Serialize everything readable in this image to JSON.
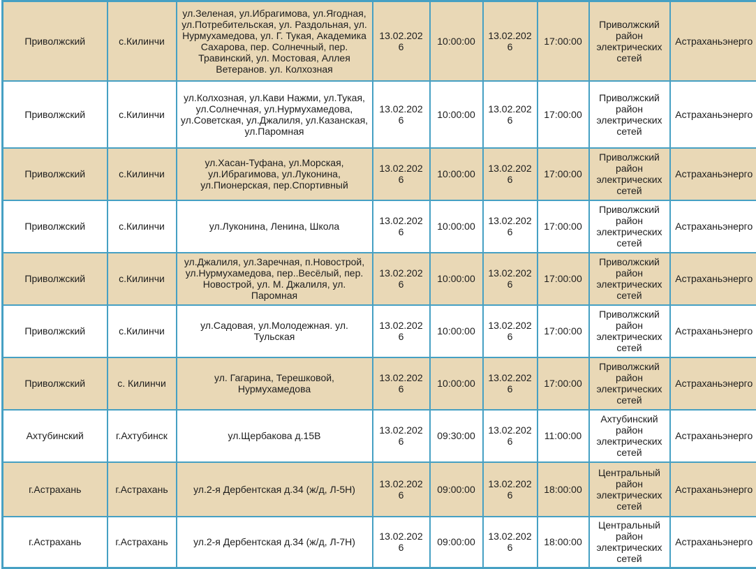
{
  "colors": {
    "shaded_row_bg": "#e9d8b6",
    "plain_row_bg": "#ffffff",
    "grid_border": "#46a0c3",
    "text": "#1d1d1d"
  },
  "table": {
    "columns": [
      "district",
      "settlement",
      "streets",
      "start_date",
      "start_time",
      "end_date",
      "end_time",
      "network_area",
      "company"
    ],
    "rows": [
      {
        "district": "Приволжский",
        "settlement": "с.Килинчи",
        "streets": "ул.Зеленая, ул.Ибрагимова, ул.Ягодная, ул.Потребительская, ул. Раздольная, ул. Нурмухамедова, ул. Г. Тукая, Академика Сахарова, пер. Солнечный, пер. Травинский, ул. Мостовая, Аллея Ветеранов. ул. Колхозная",
        "start_date": "13.02.2026",
        "start_time": "10:00:00",
        "end_date": "13.02.2026",
        "end_time": "17:00:00",
        "network_area": "Приволжский район электрических сетей",
        "company": "Астраханьэнерго"
      },
      {
        "district": "Приволжский",
        "settlement": "с.Килинчи",
        "streets": "ул.Колхозная, ул.Кави Нажми, ул.Тукая, ул.Солнечная, ул.Нурмухамедова, ул.Советская, ул.Джалиля, ул.Казанская, ул.Паромная",
        "start_date": "13.02.2026",
        "start_time": "10:00:00",
        "end_date": "13.02.2026",
        "end_time": "17:00:00",
        "network_area": "Приволжский район электрических сетей",
        "company": "Астраханьэнерго"
      },
      {
        "district": "Приволжский",
        "settlement": "с.Килинчи",
        "streets": "ул.Хасан-Туфана, ул.Морская, ул.Ибрагимова, ул.Луконина, ул.Пионерская, пер.Спортивный",
        "start_date": "13.02.2026",
        "start_time": "10:00:00",
        "end_date": "13.02.2026",
        "end_time": "17:00:00",
        "network_area": "Приволжский район электрических сетей",
        "company": "Астраханьэнерго"
      },
      {
        "district": "Приволжский",
        "settlement": "с.Килинчи",
        "streets": "ул.Луконина, Ленина, Школа",
        "start_date": "13.02.2026",
        "start_time": "10:00:00",
        "end_date": "13.02.2026",
        "end_time": "17:00:00",
        "network_area": "Приволжский район электрических сетей",
        "company": "Астраханьэнерго"
      },
      {
        "district": "Приволжский",
        "settlement": "с.Килинчи",
        "streets": "ул.Джалиля, ул.Заречная, п.Новострой, ул.Нурмухамедова, пер..Весёлый, пер. Новострой, ул. М. Джалиля, ул. Паромная",
        "start_date": "13.02.2026",
        "start_time": "10:00:00",
        "end_date": "13.02.2026",
        "end_time": "17:00:00",
        "network_area": "Приволжский район электрических сетей",
        "company": "Астраханьэнерго"
      },
      {
        "district": "Приволжский",
        "settlement": "с.Килинчи",
        "streets": "ул.Садовая, ул.Молодежная. ул. Тульская",
        "start_date": "13.02.2026",
        "start_time": "10:00:00",
        "end_date": "13.02.2026",
        "end_time": "17:00:00",
        "network_area": "Приволжский район электрических сетей",
        "company": "Астраханьэнерго"
      },
      {
        "district": "Приволжский",
        "settlement": "с. Килинчи",
        "streets": "ул. Гагарина, Терешковой, Нурмухамедова",
        "start_date": "13.02.2026",
        "start_time": "10:00:00",
        "end_date": "13.02.2026",
        "end_time": "17:00:00",
        "network_area": "Приволжский район электрических сетей",
        "company": "Астраханьэнерго"
      },
      {
        "district": "Ахтубинский",
        "settlement": "г.Ахтубинск",
        "streets": "ул.Щербакова д.15В",
        "start_date": "13.02.2026",
        "start_time": "09:30:00",
        "end_date": "13.02.2026",
        "end_time": "11:00:00",
        "network_area": "Ахтубинский район электрических сетей",
        "company": "Астраханьэнерго"
      },
      {
        "district": "г.Астрахань",
        "settlement": "г.Астрахань",
        "streets": "ул.2-я Дербентская д.34 (ж/д, Л-5Н)",
        "start_date": "13.02.2026",
        "start_time": "09:00:00",
        "end_date": "13.02.2026",
        "end_time": "18:00:00",
        "network_area": "Центральный район электрических сетей",
        "company": "Астраханьэнерго"
      },
      {
        "district": "г.Астрахань",
        "settlement": "г.Астрахань",
        "streets": "ул.2-я Дербентская д.34 (ж/д, Л-7Н)",
        "start_date": "13.02.2026",
        "start_time": "09:00:00",
        "end_date": "13.02.2026",
        "end_time": "18:00:00",
        "network_area": "Центральный район электрических сетей",
        "company": "Астраханьэнерго"
      }
    ]
  }
}
